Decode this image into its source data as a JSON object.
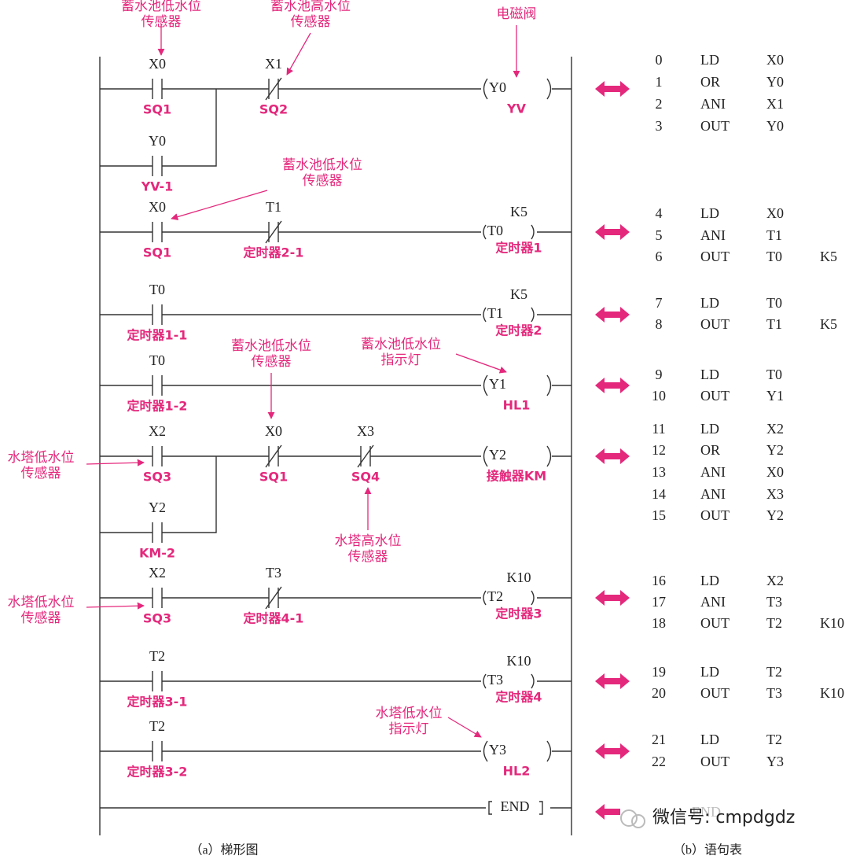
{
  "annotations": [
    {
      "lines": [
        "蓄水池低水位",
        "传感器"
      ]
    },
    {
      "lines": [
        "蓄水池高水位",
        "传感器"
      ]
    },
    {
      "lines": [
        "电磁阀"
      ]
    },
    {
      "lines": [
        "蓄水池低水位",
        "传感器"
      ]
    },
    {
      "lines": [
        "蓄水池低水位",
        "传感器"
      ]
    },
    {
      "lines": [
        "蓄水池低水位",
        "指示灯"
      ]
    },
    {
      "lines": [
        "水塔低水位",
        "传感器"
      ]
    },
    {
      "lines": [
        "水塔高水位",
        "传感器"
      ]
    },
    {
      "lines": [
        "水塔低水位",
        "传感器"
      ]
    },
    {
      "lines": [
        "水塔低水位",
        "指示灯"
      ]
    }
  ],
  "rungs": [
    {
      "contacts": [
        {
          "addr": "X0",
          "label": "SQ1",
          "kind": "no"
        },
        {
          "addr": "X1",
          "label": "SQ2",
          "kind": "nc"
        }
      ],
      "branch": {
        "addr": "Y0",
        "label": "YV-1",
        "kind": "no"
      },
      "coil": {
        "addr": "Y0",
        "label": "YV"
      }
    },
    {
      "contacts": [
        {
          "addr": "X0",
          "label": "SQ1",
          "kind": "no"
        },
        {
          "addr": "T1",
          "label": "定时器2-1",
          "kind": "nc"
        }
      ],
      "coil": {
        "addr": "T0",
        "label": "定时器1",
        "k": "K5"
      }
    },
    {
      "contacts": [
        {
          "addr": "T0",
          "label": "定时器1-1",
          "kind": "no"
        }
      ],
      "coil": {
        "addr": "T1",
        "label": "定时器2",
        "k": "K5"
      }
    },
    {
      "contacts": [
        {
          "addr": "T0",
          "label": "定时器1-2",
          "kind": "no"
        }
      ],
      "coil": {
        "addr": "Y1",
        "label": "HL1"
      }
    },
    {
      "contacts": [
        {
          "addr": "X2",
          "label": "SQ3",
          "kind": "no"
        },
        {
          "addr": "X0",
          "label": "SQ1",
          "kind": "nc"
        },
        {
          "addr": "X3",
          "label": "SQ4",
          "kind": "nc"
        }
      ],
      "branch": {
        "addr": "Y2",
        "label": "KM-2",
        "kind": "no"
      },
      "coil": {
        "addr": "Y2",
        "label": "接触器KM"
      }
    },
    {
      "contacts": [
        {
          "addr": "X2",
          "label": "SQ3",
          "kind": "no"
        },
        {
          "addr": "T3",
          "label": "定时器4-1",
          "kind": "nc"
        }
      ],
      "coil": {
        "addr": "T2",
        "label": "定时器3",
        "k": "K10"
      }
    },
    {
      "contacts": [
        {
          "addr": "T2",
          "label": "定时器3-1",
          "kind": "no"
        }
      ],
      "coil": {
        "addr": "T3",
        "label": "定时器4",
        "k": "K10"
      }
    },
    {
      "contacts": [
        {
          "addr": "T2",
          "label": "定时器3-2",
          "kind": "no"
        }
      ],
      "coil": {
        "addr": "Y3",
        "label": "HL2"
      }
    }
  ],
  "end_coil": "END",
  "instructions": [
    {
      "step": 0,
      "op": "LD",
      "operand": "X0"
    },
    {
      "step": 1,
      "op": "OR",
      "operand": "Y0"
    },
    {
      "step": 2,
      "op": "ANI",
      "operand": "X1"
    },
    {
      "step": 3,
      "op": "OUT",
      "operand": "Y0"
    },
    {
      "step": 4,
      "op": "LD",
      "operand": "X0"
    },
    {
      "step": 5,
      "op": "ANI",
      "operand": "T1"
    },
    {
      "step": 6,
      "op": "OUT",
      "operand": "T0",
      "k": "K5"
    },
    {
      "step": 7,
      "op": "LD",
      "operand": "T0"
    },
    {
      "step": 8,
      "op": "OUT",
      "operand": "T1",
      "k": "K5"
    },
    {
      "step": 9,
      "op": "LD",
      "operand": "T0"
    },
    {
      "step": 10,
      "op": "OUT",
      "operand": "Y1"
    },
    {
      "step": 11,
      "op": "LD",
      "operand": "X2"
    },
    {
      "step": 12,
      "op": "OR",
      "operand": "Y2"
    },
    {
      "step": 13,
      "op": "ANI",
      "operand": "X0"
    },
    {
      "step": 14,
      "op": "ANI",
      "operand": "X3"
    },
    {
      "step": 15,
      "op": "OUT",
      "operand": "Y2"
    },
    {
      "step": 16,
      "op": "LD",
      "operand": "X2"
    },
    {
      "step": 17,
      "op": "ANI",
      "operand": "T3"
    },
    {
      "step": 18,
      "op": "OUT",
      "operand": "T2",
      "k": "K10"
    },
    {
      "step": 19,
      "op": "LD",
      "operand": "T2"
    },
    {
      "step": 20,
      "op": "OUT",
      "operand": "T3",
      "k": "K10"
    },
    {
      "step": 21,
      "op": "LD",
      "operand": "T2"
    },
    {
      "step": 22,
      "op": "OUT",
      "operand": "Y3"
    }
  ],
  "instruction_end": "END",
  "watermark": "微信号: cmpdgdz",
  "captions": {
    "ladder": "（a）梯形图",
    "list": "（b）语句表"
  }
}
